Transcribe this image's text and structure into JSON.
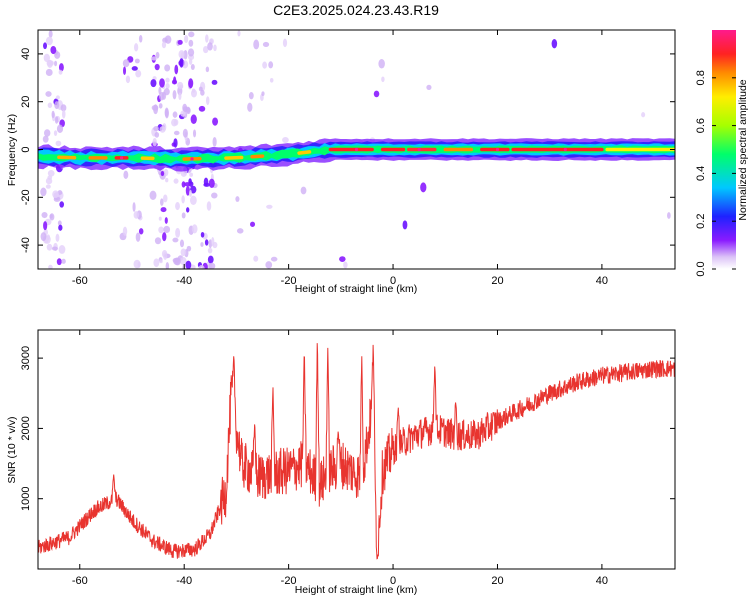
{
  "title": "C2E3.2025.024.23.43.R19",
  "chart_data": [
    {
      "type": "heatmap",
      "xlabel": "Height of straight line (km)",
      "ylabel": "Frequency (Hz)",
      "xlim": [
        -68,
        54
      ],
      "ylim": [
        -50,
        50
      ],
      "xticks": [
        -60,
        -40,
        -20,
        0,
        20,
        40
      ],
      "yticks": [
        -40,
        -20,
        0,
        20,
        40
      ],
      "ridge": {
        "x": [
          -68,
          -60,
          -50,
          -40,
          -30,
          -20,
          -14,
          -12,
          0,
          10,
          20,
          30,
          40,
          54
        ],
        "y": [
          -3,
          -3.5,
          -3.5,
          -4,
          -3.5,
          -2,
          -0.5,
          0,
          0,
          0,
          0,
          0,
          0,
          0
        ]
      },
      "colorbar": {
        "label": "Normalized spectral amplitude",
        "range": [
          0,
          1
        ],
        "ticks": [
          "0.0",
          "0.2",
          "0.4",
          "0.6",
          "0.8"
        ]
      }
    },
    {
      "type": "line",
      "xlabel": "Height of straight line (km)",
      "ylabel": "SNR (10 * v/v)",
      "xlim": [
        -68,
        54
      ],
      "ylim": [
        0,
        3400
      ],
      "xticks": [
        -60,
        -40,
        -20,
        0,
        20,
        40
      ],
      "yticks": [
        1000,
        2000,
        3000
      ],
      "color": "#e8342f",
      "envelope": {
        "x": [
          -68,
          -62,
          -57,
          -53,
          -50,
          -46,
          -42,
          -38,
          -35,
          -32,
          -31,
          -29,
          -26,
          -23,
          -20,
          -17,
          -14,
          -12,
          -10,
          -8,
          -6,
          -4,
          -3,
          -2,
          0,
          4,
          8,
          12,
          16,
          20,
          25,
          30,
          35,
          40,
          45,
          50,
          54
        ],
        "y": [
          300,
          450,
          850,
          1000,
          700,
          400,
          250,
          280,
          500,
          1100,
          2500,
          1500,
          1300,
          1350,
          1400,
          1500,
          1200,
          1400,
          1500,
          1400,
          1300,
          2300,
          300,
          1400,
          1700,
          1900,
          2000,
          1900,
          1900,
          2100,
          2300,
          2500,
          2650,
          2750,
          2800,
          2850,
          2850
        ]
      },
      "spikes": [
        {
          "x": -30.5,
          "y": 3050
        },
        {
          "x": -26.5,
          "y": 2100
        },
        {
          "x": -23,
          "y": 2600
        },
        {
          "x": -17,
          "y": 3150
        },
        {
          "x": -14.5,
          "y": 3350
        },
        {
          "x": -12.5,
          "y": 3200
        },
        {
          "x": -10.5,
          "y": 2000
        },
        {
          "x": -6,
          "y": 3100
        },
        {
          "x": -3.8,
          "y": 3250
        },
        {
          "x": -3,
          "y": 150
        },
        {
          "x": 8,
          "y": 2950
        },
        {
          "x": 12,
          "y": 2400
        },
        {
          "x": 1,
          "y": 2300
        },
        {
          "x": -53.5,
          "y": 1350
        }
      ]
    }
  ]
}
